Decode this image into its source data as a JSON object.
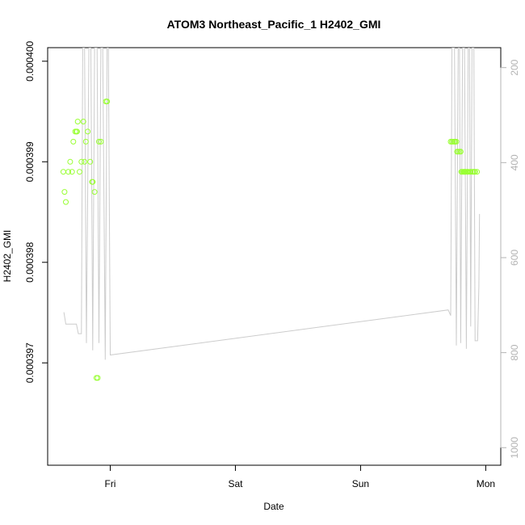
{
  "chart_data": {
    "type": "scatter",
    "title": "ATOM3 Northeast_Pacific_1 H2402_GMI",
    "xlabel": "Date",
    "ylabel": "H2402_GMI",
    "x_ticks": [
      "Fri",
      "Sat",
      "Sun",
      "Mon"
    ],
    "x_tick_values": [
      1.0,
      2.0,
      3.0,
      4.0
    ],
    "xlim": [
      0.5,
      4.12
    ],
    "ylim": [
      0.000395982,
      0.000400135
    ],
    "y_ticks": [
      "0.000397",
      "0.000398",
      "0.000399",
      "0.000400"
    ],
    "y_tick_values": [
      0.000397,
      0.000398,
      0.000399,
      0.0004
    ],
    "y2lim": [
      1037,
      158
    ],
    "y2_ticks": [
      "200",
      "400",
      "600",
      "800",
      "1000"
    ],
    "y2_tick_values": [
      200,
      400,
      600,
      800,
      1000
    ],
    "grid": false,
    "colors": {
      "points": "#99ff33",
      "line": "#cccccc",
      "box": "#000000",
      "right_axis": "#b3b3b3"
    },
    "series": [
      {
        "kind": "points",
        "x": [
          0.625,
          0.635,
          0.645,
          0.665,
          0.68,
          0.695,
          0.705,
          0.72,
          0.73,
          0.735,
          0.74,
          0.755,
          0.77,
          0.785,
          0.795,
          0.805,
          0.82,
          0.84,
          0.855,
          0.86,
          0.875,
          0.89,
          0.9,
          0.91,
          0.925,
          0.965,
          0.975,
          3.72,
          3.73,
          3.74,
          3.75,
          3.755,
          3.765,
          3.77,
          3.78,
          3.79,
          3.8,
          3.805,
          3.81,
          3.82,
          3.825,
          3.83,
          3.835,
          3.84,
          3.85,
          3.855,
          3.86,
          3.875,
          3.88,
          3.895,
          3.9,
          3.91,
          3.915,
          3.93
        ],
        "y": [
          0.0003989,
          0.0003987,
          0.0003986,
          0.0003989,
          0.000399,
          0.0003989,
          0.0003992,
          0.0003993,
          0.0003993,
          0.0003993,
          0.0003994,
          0.0003989,
          0.000399,
          0.0003994,
          0.000399,
          0.0003992,
          0.0003993,
          0.000399,
          0.0003988,
          0.0003988,
          0.0003987,
          0.00039685,
          0.00039685,
          0.0003992,
          0.0003992,
          0.0003996,
          0.0003996,
          0.0003992,
          0.0003992,
          0.0003992,
          0.0003992,
          0.0003992,
          0.0003992,
          0.0003991,
          0.0003991,
          0.0003991,
          0.0003991,
          0.0003989,
          0.0003989,
          0.0003989,
          0.0003989,
          0.0003989,
          0.0003989,
          0.0003989,
          0.0003989,
          0.0003989,
          0.0003989,
          0.0003989,
          0.0003989,
          0.0003989,
          0.0003989,
          0.0003989,
          0.0003989,
          0.0003989
        ]
      },
      {
        "kind": "line",
        "axis": "right",
        "x": [
          0.63,
          0.645,
          0.73,
          0.745,
          0.77,
          0.78,
          0.795,
          0.81,
          0.83,
          0.845,
          0.86,
          0.875,
          0.895,
          0.91,
          0.925,
          0.94,
          0.96,
          0.975,
          0.985,
          1.0,
          3.7,
          3.72,
          3.73,
          3.75,
          3.765,
          3.78,
          3.79,
          3.8,
          3.815,
          3.83,
          3.845,
          3.86,
          3.87,
          3.88,
          3.89,
          3.905,
          3.915,
          3.925,
          3.935,
          3.945,
          3.95
        ],
        "y": [
          715,
          740,
          740,
          760,
          760,
          158,
          158,
          780,
          158,
          158,
          795,
          158,
          158,
          780,
          158,
          158,
          815,
          158,
          158,
          805,
          710,
          722,
          158,
          158,
          785,
          158,
          158,
          780,
          158,
          158,
          792,
          158,
          158,
          745,
          158,
          158,
          775,
          775,
          775,
          660,
          508
        ]
      }
    ]
  }
}
